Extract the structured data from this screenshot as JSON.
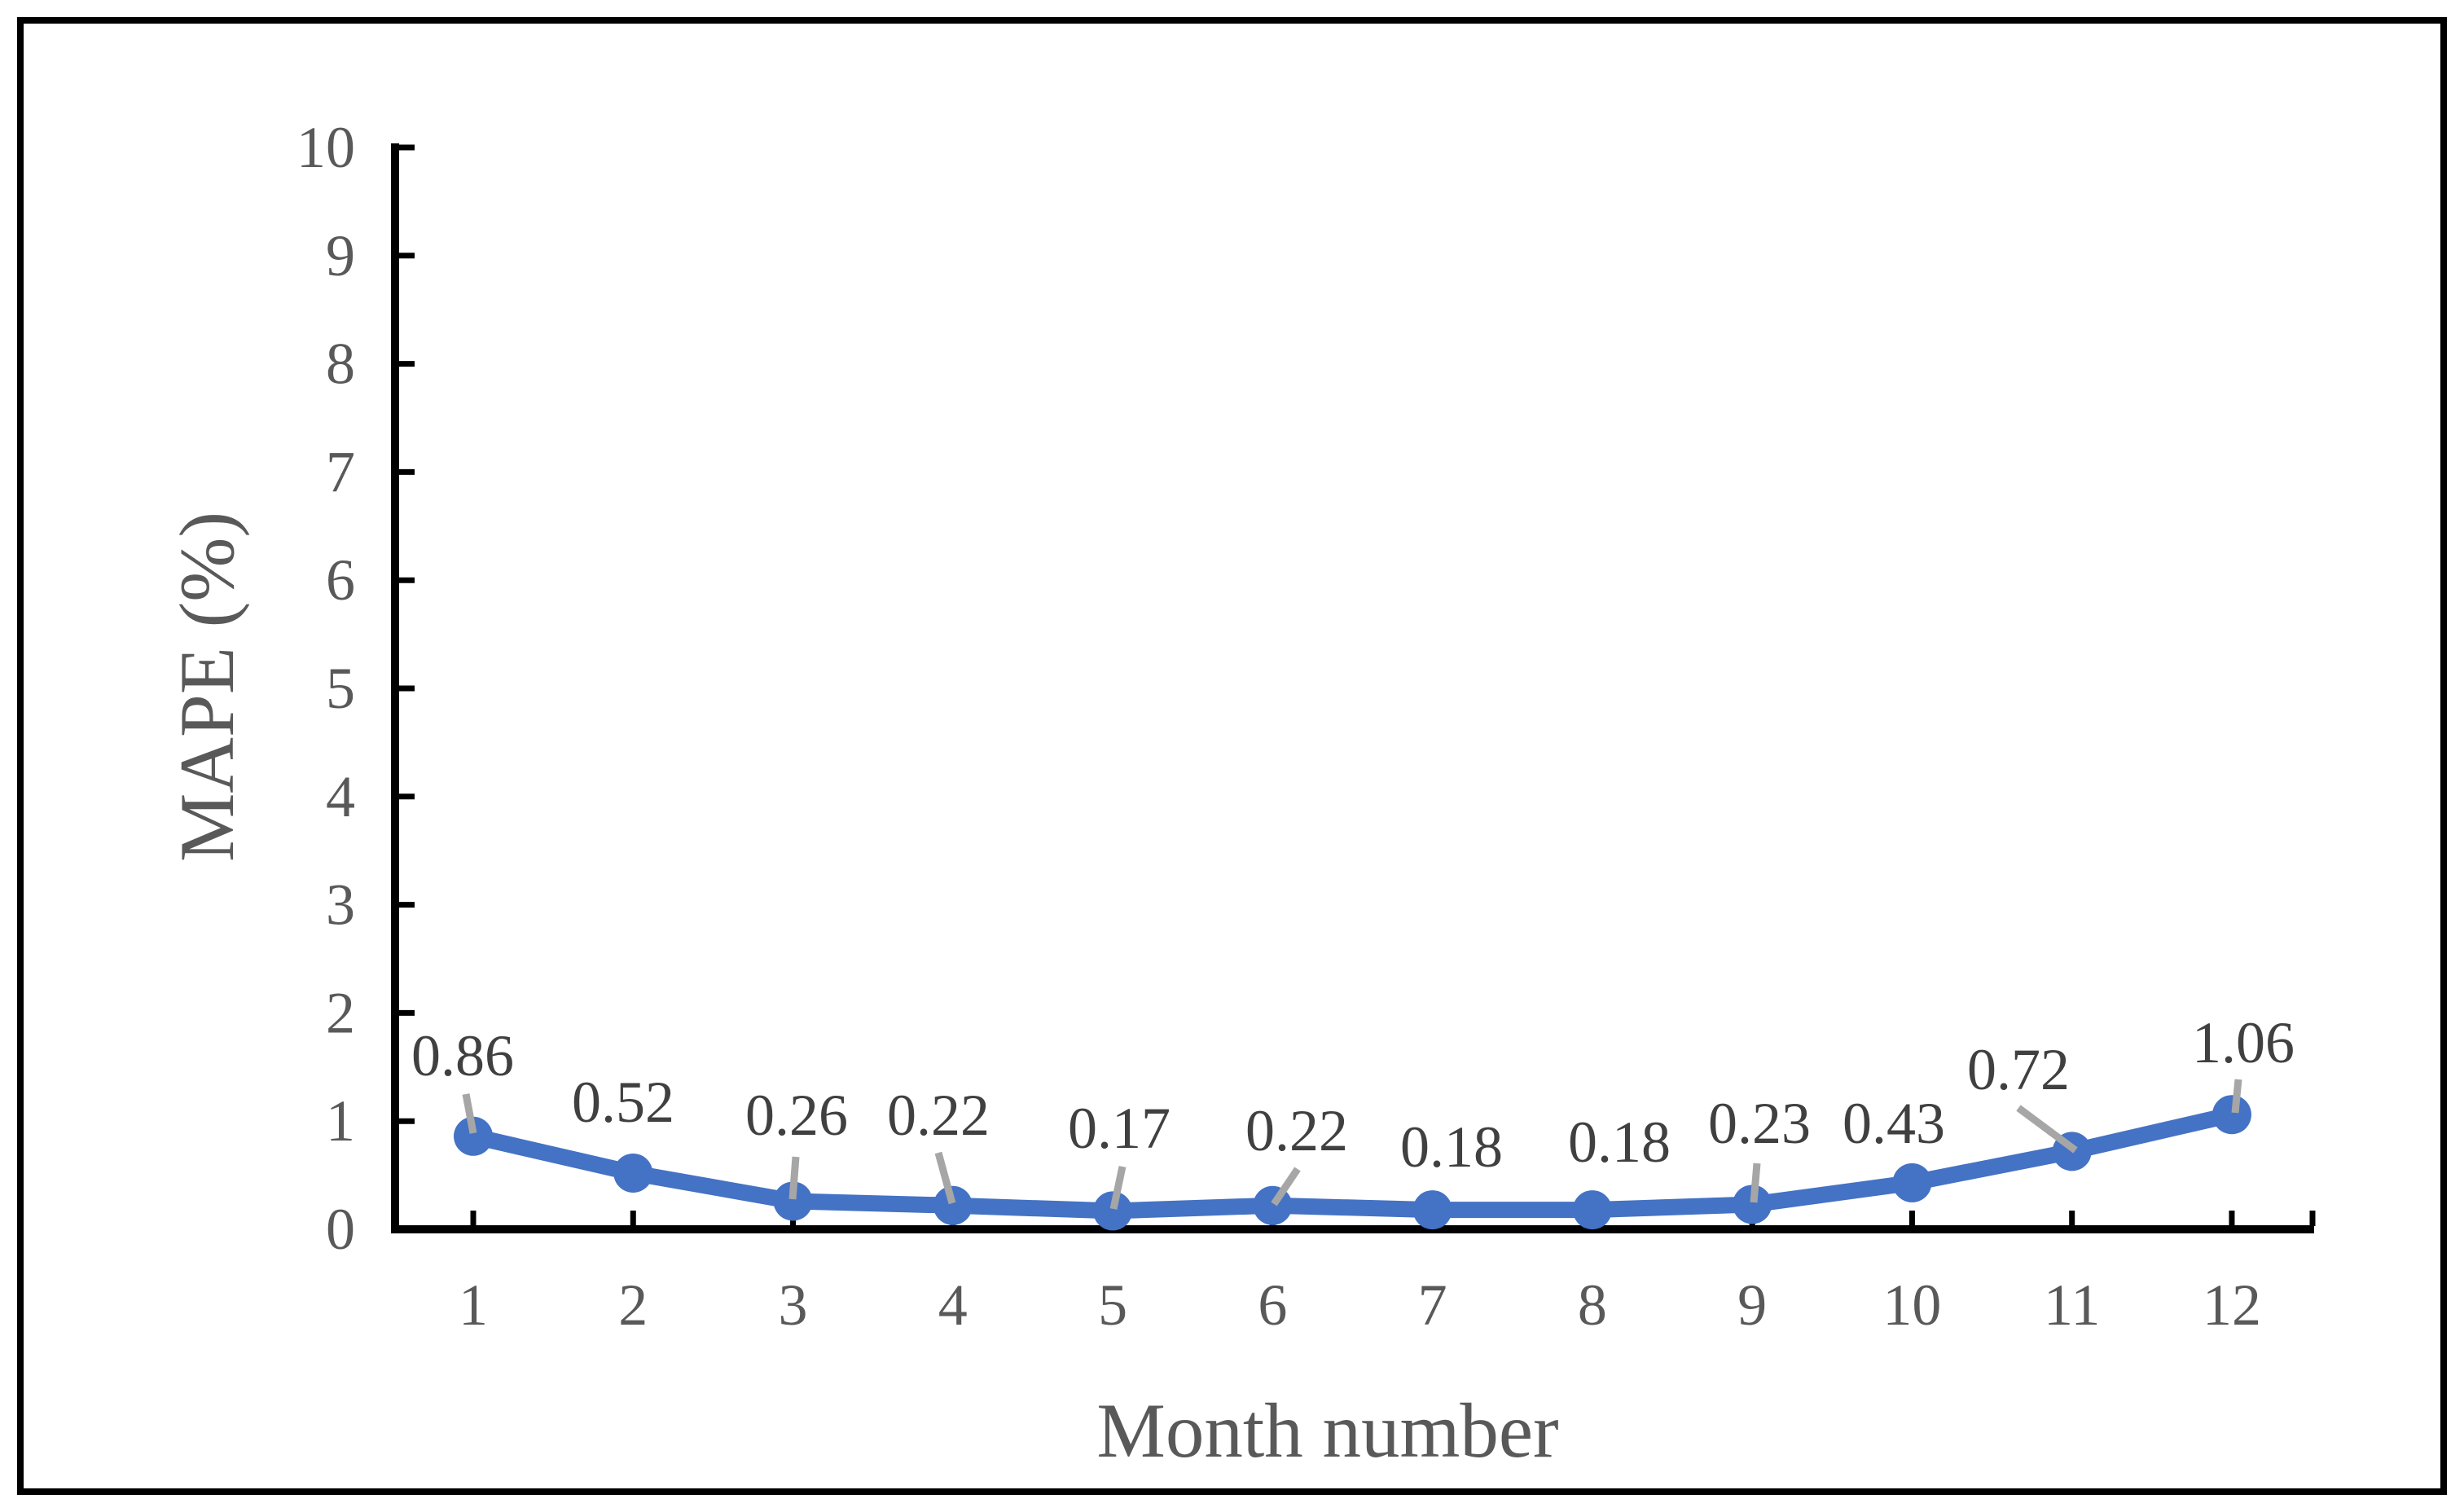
{
  "chart_data": {
    "type": "line",
    "title": "",
    "xlabel": "Month number",
    "ylabel": "MAPE (%)",
    "categories": [
      1,
      2,
      3,
      4,
      5,
      6,
      7,
      8,
      9,
      10,
      11,
      12
    ],
    "series": [
      {
        "name": "MAPE",
        "values": [
          0.86,
          0.52,
          0.26,
          0.22,
          0.17,
          0.22,
          0.18,
          0.18,
          0.23,
          0.43,
          0.72,
          1.06
        ],
        "data_labels": [
          "0.86",
          "0.52",
          "0.26",
          "0.22",
          "0.17",
          "0.22",
          "0.18",
          "0.18",
          "0.23",
          "0.43",
          "0.72",
          "1.06"
        ]
      }
    ],
    "ylim": [
      0,
      10
    ],
    "yticks": [
      "0",
      "1",
      "2",
      "3",
      "4",
      "5",
      "6",
      "7",
      "8",
      "9",
      "10"
    ],
    "xticks": [
      "1",
      "2",
      "3",
      "4",
      "5",
      "6",
      "7",
      "8",
      "9",
      "10",
      "11",
      "12"
    ],
    "grid": false,
    "legend_position": "none",
    "marker": "circle",
    "colors": {
      "series_line": "#4472C4",
      "marker_fill": "#4472C4",
      "leader_line": "#A6A6A6",
      "axis_line": "#000000",
      "tick_label_text": "#595959",
      "axis_title_text": "#595959",
      "data_label_text": "#404040",
      "figure_border": "#000000",
      "background": "#ffffff"
    }
  }
}
